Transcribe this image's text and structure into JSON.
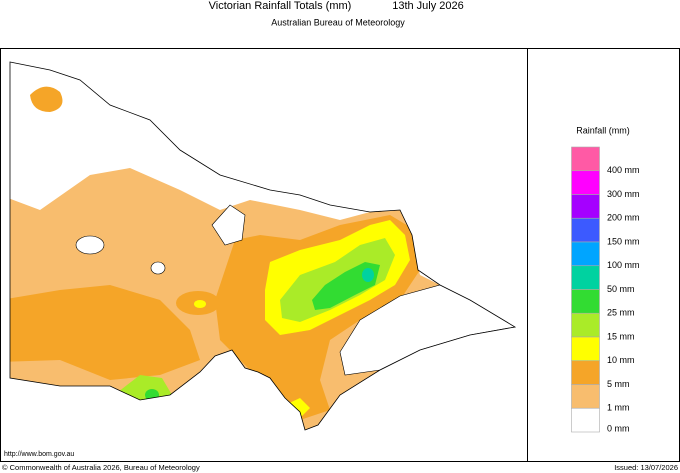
{
  "header": {
    "title": "Victorian Rainfall Totals (mm)",
    "date": "13th July 2026",
    "subtitle": "Australian Bureau of Meteorology"
  },
  "legend": {
    "title": "Rainfall (mm)",
    "items": [
      {
        "label": "400 mm",
        "color": "#ff5aa5"
      },
      {
        "label": "300 mm",
        "color": "#ff00ff"
      },
      {
        "label": "200 mm",
        "color": "#a500ff"
      },
      {
        "label": "150 mm",
        "color": "#3c5aff"
      },
      {
        "label": "100 mm",
        "color": "#00a5ff"
      },
      {
        "label": "50 mm",
        "color": "#00d2a0"
      },
      {
        "label": "25 mm",
        "color": "#32dc32"
      },
      {
        "label": "15 mm",
        "color": "#aaeb28"
      },
      {
        "label": "10 mm",
        "color": "#ffff00"
      },
      {
        "label": "5 mm",
        "color": "#f5a528"
      },
      {
        "label": "1 mm",
        "color": "#f8bd6e"
      },
      {
        "label": "0 mm",
        "color": "#ffffff"
      }
    ]
  },
  "footer": {
    "url": "http://www.bom.gov.au",
    "copyright": "© Commonwealth of Australia 2026, Bureau of Meteorology",
    "issued": "Issued: 13/07/2026"
  }
}
